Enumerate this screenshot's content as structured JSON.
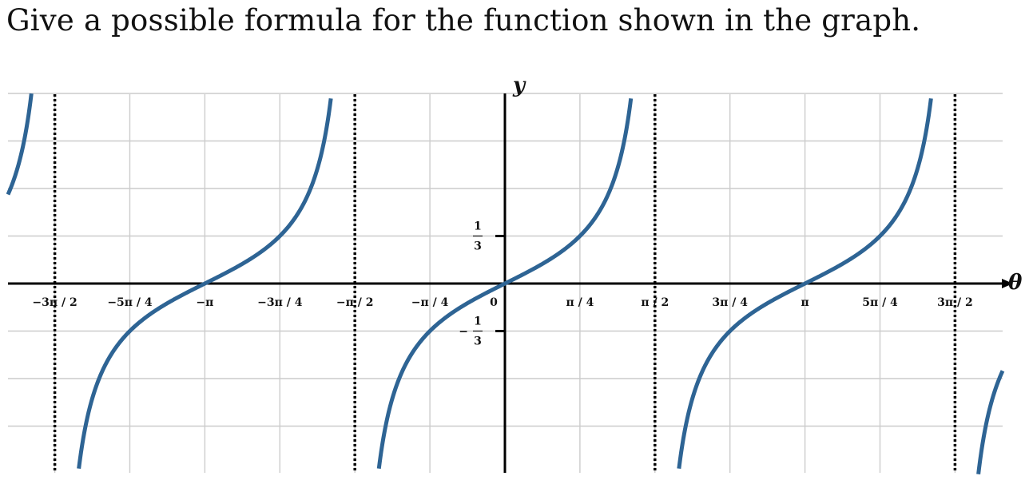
{
  "question": "Give a possible formula for the function shown in the graph.",
  "chart_data": {
    "type": "line",
    "xlabel": "θ",
    "ylabel": "y",
    "x_tick_labels": [
      "−3π / 2",
      "−5π / 4",
      "−π",
      "−3π / 4",
      "−π / 2",
      "−π / 4",
      "0",
      "π / 4",
      "π / 2",
      "3π / 4",
      "π",
      "5π / 4",
      "3π / 2"
    ],
    "x_tick_values": [
      -4.712389,
      -3.926991,
      -3.141593,
      -2.356194,
      -1.570796,
      -0.785398,
      0,
      0.785398,
      1.570796,
      2.356194,
      3.141593,
      3.926991,
      4.712389
    ],
    "y_tick_labels": [
      {
        "value": 0.333333,
        "sign": "",
        "numerator": "1",
        "denominator": "3"
      },
      {
        "value": -0.333333,
        "sign": "−",
        "numerator": "1",
        "denominator": "3"
      }
    ],
    "xlim": [
      -5.02,
      5.02
    ],
    "ylim": [
      -1.35,
      1.35
    ],
    "grid": true,
    "asymptotes": [
      -4.712389,
      -1.570796,
      1.570796,
      4.712389
    ],
    "series": [
      {
        "formula": "(1/3)·tan(θ)",
        "amplitude": 0.333333,
        "color": "#2e6494"
      }
    ],
    "grid_color": "#cccccc",
    "axis_color": "#000000"
  }
}
